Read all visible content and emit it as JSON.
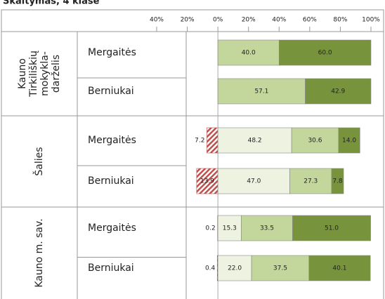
{
  "chart_data": {
    "type": "diverging_stacked_bar",
    "title": "Skaitymas, 4 klasė",
    "groups": [
      {
        "label": [
          "Kauno",
          "Tirkiliškių",
          "mokykla-",
          "darželis"
        ]
      },
      {
        "label": [
          "Šalies"
        ]
      },
      {
        "label": [
          "Kauno m. sav."
        ]
      }
    ],
    "categories": [
      "Mergaitės",
      "Berniukai",
      "Mergaitės",
      "Berniukai",
      "Mergaitės",
      "Berniukai"
    ],
    "series": [
      {
        "color": "#c0504d",
        "hatch": true,
        "values": [
          null,
          null,
          -7.2,
          -13.9,
          -0.2,
          -0.4
        ],
        "value_labels": [
          null,
          null,
          "7.2",
          "13.9",
          "0.2",
          "0.4"
        ]
      },
      {
        "color": "#eef2e0",
        "values": [
          null,
          null,
          48.2,
          47.0,
          15.3,
          22.0
        ],
        "value_labels": [
          null,
          null,
          "48.2",
          "47.0",
          "15.3",
          "22.0"
        ]
      },
      {
        "color": "#c3d69b",
        "values": [
          40.0,
          57.1,
          30.6,
          27.3,
          33.5,
          37.5
        ],
        "value_labels": [
          "40.0",
          "57.1",
          "30.6",
          "27.3",
          "33.5",
          "37.5"
        ]
      },
      {
        "color": "#77933c",
        "values": [
          60.0,
          42.9,
          14.0,
          7.8,
          51.0,
          40.1
        ],
        "value_labels": [
          "60.0",
          "42.9",
          "14.0",
          "7.8",
          "51.0",
          "40.1"
        ]
      }
    ],
    "xlim": [
      -40,
      100
    ],
    "xticks": [
      {
        "value": -40,
        "label": "40%"
      },
      {
        "value": -20,
        "label": "20%"
      },
      {
        "value": 0,
        "label": "0%"
      },
      {
        "value": 20,
        "label": "20%"
      },
      {
        "value": 40,
        "label": "40%"
      },
      {
        "value": 60,
        "label": "60%"
      },
      {
        "value": 80,
        "label": "80%"
      },
      {
        "value": 100,
        "label": "100%"
      }
    ]
  }
}
